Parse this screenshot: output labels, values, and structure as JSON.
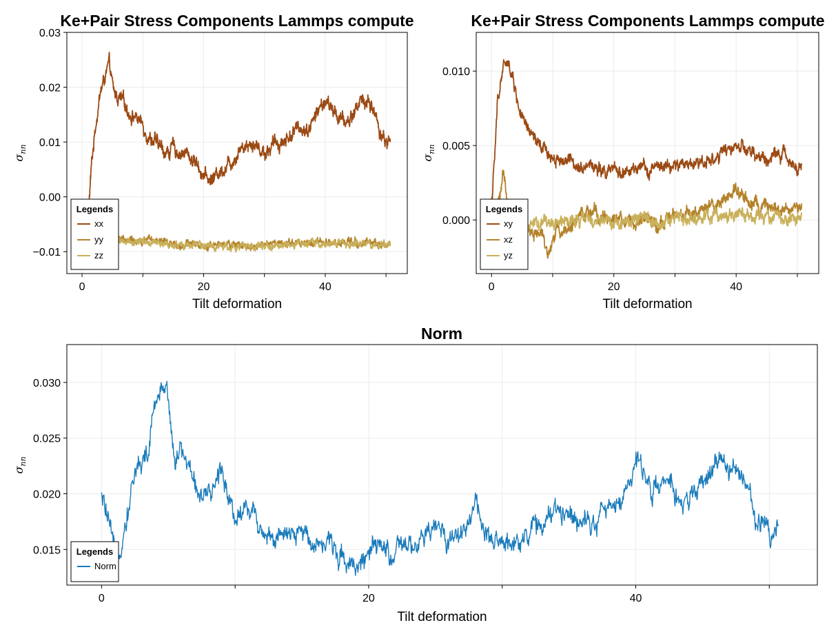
{
  "chart_data": [
    {
      "type": "line",
      "title": "Ke+Pair Stress Components Lammps compute",
      "xlabel": "Tilt deformation",
      "ylabel_main": "σ",
      "ylabel_sub": "nn",
      "xlim": [
        -2.5,
        53.5
      ],
      "ylim": [
        -0.014,
        0.03
      ],
      "xticks": [
        0,
        20,
        40
      ],
      "xtick_labels": [
        "0",
        "20",
        "40"
      ],
      "yticks": [
        -0.01,
        0.0,
        0.01,
        0.02,
        0.03
      ],
      "ytick_labels": [
        "−0.01",
        "0.00",
        "0.01",
        "0.02",
        "0.03"
      ],
      "grid": true,
      "legend": {
        "title": "Legends",
        "placement": "bottom-left"
      },
      "series": [
        {
          "name": "xx",
          "color": "#9b4a14",
          "noise": 0.0012,
          "points": [
            [
              1.0,
              -0.004
            ],
            [
              1.5,
              0.005
            ],
            [
              2.2,
              0.013
            ],
            [
              3.0,
              0.019
            ],
            [
              3.8,
              0.022
            ],
            [
              4.5,
              0.024
            ],
            [
              5.2,
              0.019
            ],
            [
              6.0,
              0.018
            ],
            [
              7.0,
              0.017
            ],
            [
              8.0,
              0.015
            ],
            [
              9.0,
              0.0145
            ],
            [
              10.0,
              0.013
            ],
            [
              11.0,
              0.011
            ],
            [
              12.0,
              0.01
            ],
            [
              13.0,
              0.009
            ],
            [
              14.0,
              0.008
            ],
            [
              15.0,
              0.009
            ],
            [
              16.0,
              0.008
            ],
            [
              17.0,
              0.008
            ],
            [
              18.0,
              0.007
            ],
            [
              19.0,
              0.006
            ],
            [
              20.0,
              0.004
            ],
            [
              21.0,
              0.003
            ],
            [
              22.0,
              0.004
            ],
            [
              23.0,
              0.005
            ],
            [
              24.0,
              0.006
            ],
            [
              25.0,
              0.007
            ],
            [
              26.0,
              0.009
            ],
            [
              27.0,
              0.0095
            ],
            [
              28.0,
              0.01
            ],
            [
              29.0,
              0.009
            ],
            [
              30.0,
              0.008
            ],
            [
              31.0,
              0.009
            ],
            [
              32.0,
              0.01
            ],
            [
              33.0,
              0.01
            ],
            [
              34.0,
              0.011
            ],
            [
              35.0,
              0.012
            ],
            [
              36.0,
              0.013
            ],
            [
              37.0,
              0.012
            ],
            [
              38.0,
              0.014
            ],
            [
              39.0,
              0.016
            ],
            [
              40.0,
              0.0175
            ],
            [
              41.0,
              0.016
            ],
            [
              42.0,
              0.015
            ],
            [
              43.0,
              0.0135
            ],
            [
              44.0,
              0.014
            ],
            [
              45.0,
              0.016
            ],
            [
              46.0,
              0.018
            ],
            [
              47.0,
              0.017
            ],
            [
              48.0,
              0.016
            ],
            [
              49.0,
              0.012
            ],
            [
              50.0,
              0.01
            ],
            [
              50.7,
              0.01
            ]
          ]
        },
        {
          "name": "yy",
          "color": "#b3822a",
          "noise": 0.0006,
          "points": [
            [
              5.0,
              -0.0075
            ],
            [
              10.0,
              -0.008
            ],
            [
              15.0,
              -0.0085
            ],
            [
              20.0,
              -0.0088
            ],
            [
              25.0,
              -0.0088
            ],
            [
              30.0,
              -0.0088
            ],
            [
              35.0,
              -0.0086
            ],
            [
              40.0,
              -0.0084
            ],
            [
              45.0,
              -0.0083
            ],
            [
              50.7,
              -0.0086
            ]
          ]
        },
        {
          "name": "zz",
          "color": "#c9b05b",
          "noise": 0.0006,
          "points": [
            [
              5.0,
              -0.0078
            ],
            [
              10.0,
              -0.0082
            ],
            [
              15.0,
              -0.0088
            ],
            [
              20.0,
              -0.009
            ],
            [
              25.0,
              -0.009
            ],
            [
              30.0,
              -0.009
            ],
            [
              35.0,
              -0.0088
            ],
            [
              40.0,
              -0.0085
            ],
            [
              45.0,
              -0.0085
            ],
            [
              50.7,
              -0.0088
            ]
          ]
        }
      ]
    },
    {
      "type": "line",
      "title": "Ke+Pair Stress Components Lammps compute",
      "xlabel": "Tilt deformation",
      "ylabel_main": "σ",
      "ylabel_sub": "nn",
      "xlim": [
        -2.5,
        53.5
      ],
      "ylim": [
        -0.0036,
        0.0126
      ],
      "xticks": [
        0,
        20,
        40
      ],
      "xtick_labels": [
        "0",
        "20",
        "40"
      ],
      "yticks": [
        0.0,
        0.005,
        0.01
      ],
      "ytick_labels": [
        "0.000",
        "0.005",
        "0.010"
      ],
      "grid": true,
      "legend": {
        "title": "Legends",
        "placement": "bottom-left"
      },
      "series": [
        {
          "name": "xy",
          "color": "#9b4a14",
          "noise": 0.0004,
          "points": [
            [
              0.0,
              0.001
            ],
            [
              0.5,
              0.004
            ],
            [
              1.0,
              0.008
            ],
            [
              2.0,
              0.0105
            ],
            [
              3.0,
              0.0102
            ],
            [
              3.5,
              0.0095
            ],
            [
              4.5,
              0.0075
            ],
            [
              5.5,
              0.0062
            ],
            [
              7.0,
              0.0055
            ],
            [
              8.0,
              0.0048
            ],
            [
              9.0,
              0.0046
            ],
            [
              10.0,
              0.0042
            ],
            [
              12.0,
              0.004
            ],
            [
              14.0,
              0.0038
            ],
            [
              15.0,
              0.0036
            ],
            [
              16.0,
              0.0038
            ],
            [
              18.0,
              0.0032
            ],
            [
              20.0,
              0.0033
            ],
            [
              22.0,
              0.0032
            ],
            [
              25.0,
              0.0034
            ],
            [
              27.0,
              0.0035
            ],
            [
              30.0,
              0.0036
            ],
            [
              32.0,
              0.0038
            ],
            [
              35.0,
              0.004
            ],
            [
              37.0,
              0.0042
            ],
            [
              39.0,
              0.0048
            ],
            [
              40.0,
              0.005
            ],
            [
              42.0,
              0.0045
            ],
            [
              44.0,
              0.0042
            ],
            [
              45.0,
              0.004
            ],
            [
              47.0,
              0.0045
            ],
            [
              49.0,
              0.004
            ],
            [
              50.7,
              0.0035
            ]
          ]
        },
        {
          "name": "xz",
          "color": "#b3822a",
          "noise": 0.0004,
          "points": [
            [
              0.0,
              0.0
            ],
            [
              1.0,
              0.0008
            ],
            [
              2.0,
              0.003
            ],
            [
              2.5,
              0.0015
            ],
            [
              3.5,
              0.0
            ],
            [
              5.0,
              -0.0005
            ],
            [
              7.0,
              -0.0008
            ],
            [
              8.5,
              -0.0012
            ],
            [
              9.5,
              -0.0022
            ],
            [
              10.5,
              -0.0008
            ],
            [
              12.0,
              -0.0006
            ],
            [
              14.0,
              -0.0002
            ],
            [
              15.5,
              0.0006
            ],
            [
              17.0,
              0.0004
            ],
            [
              19.0,
              0.0002
            ],
            [
              21.0,
              0.0
            ],
            [
              23.0,
              -0.0002
            ],
            [
              25.0,
              0.0
            ],
            [
              27.0,
              -0.0002
            ],
            [
              30.0,
              0.0002
            ],
            [
              33.0,
              0.0005
            ],
            [
              36.0,
              0.0008
            ],
            [
              38.0,
              0.0012
            ],
            [
              40.0,
              0.0022
            ],
            [
              41.0,
              0.0018
            ],
            [
              42.0,
              0.0012
            ],
            [
              44.0,
              0.0008
            ],
            [
              46.0,
              0.0006
            ],
            [
              48.0,
              0.0006
            ],
            [
              50.7,
              0.001
            ]
          ]
        },
        {
          "name": "yz",
          "color": "#c9b05b",
          "noise": 0.0004,
          "points": [
            [
              0.0,
              0.0
            ],
            [
              2.0,
              0.0003
            ],
            [
              4.0,
              -0.0003
            ],
            [
              8.0,
              -0.0002
            ],
            [
              12.0,
              -0.0002
            ],
            [
              16.0,
              0.0
            ],
            [
              20.0,
              -0.0001
            ],
            [
              24.0,
              0.0
            ],
            [
              28.0,
              0.0
            ],
            [
              32.0,
              0.0001
            ],
            [
              36.0,
              0.0002
            ],
            [
              40.0,
              0.0003
            ],
            [
              44.0,
              0.0002
            ],
            [
              48.0,
              0.0002
            ],
            [
              50.7,
              0.0002
            ]
          ]
        }
      ]
    },
    {
      "type": "line",
      "title": "Norm",
      "xlabel": "Tilt deformation",
      "ylabel_main": "σ",
      "ylabel_sub": "nn",
      "xlim": [
        -2.6,
        53.6
      ],
      "ylim": [
        0.0118,
        0.0334
      ],
      "xticks": [
        0,
        20,
        40
      ],
      "xtick_labels": [
        "0",
        "20",
        "40"
      ],
      "yticks": [
        0.015,
        0.02,
        0.025,
        0.03
      ],
      "ytick_labels": [
        "0.015",
        "0.020",
        "0.025",
        "0.030"
      ],
      "grid": true,
      "legend": {
        "title": "Legends",
        "placement": "bottom-left"
      },
      "series": [
        {
          "name": "Norm",
          "color": "#1a7bbb",
          "noise": 0.001,
          "points": [
            [
              0.0,
              0.0195
            ],
            [
              0.3,
              0.0185
            ],
            [
              0.6,
              0.0165
            ],
            [
              1.0,
              0.014
            ],
            [
              1.5,
              0.016
            ],
            [
              2.0,
              0.019
            ],
            [
              2.5,
              0.022
            ],
            [
              3.0,
              0.023
            ],
            [
              3.5,
              0.0235
            ],
            [
              4.0,
              0.028
            ],
            [
              4.5,
              0.029
            ],
            [
              4.9,
              0.0305
            ],
            [
              5.2,
              0.026
            ],
            [
              5.6,
              0.023
            ],
            [
              6.0,
              0.024
            ],
            [
              7.0,
              0.021
            ],
            [
              8.0,
              0.019
            ],
            [
              9.0,
              0.0225
            ],
            [
              10.0,
              0.018
            ],
            [
              11.0,
              0.019
            ],
            [
              12.0,
              0.017
            ],
            [
              13.0,
              0.016
            ],
            [
              14.0,
              0.0158
            ],
            [
              15.0,
              0.0165
            ],
            [
              16.0,
              0.016
            ],
            [
              17.0,
              0.0155
            ],
            [
              18.0,
              0.0145
            ],
            [
              19.0,
              0.0138
            ],
            [
              20.0,
              0.0145
            ],
            [
              21.0,
              0.015
            ],
            [
              22.0,
              0.0145
            ],
            [
              23.0,
              0.015
            ],
            [
              24.0,
              0.0155
            ],
            [
              25.0,
              0.017
            ],
            [
              26.0,
              0.016
            ],
            [
              27.0,
              0.0165
            ],
            [
              28.0,
              0.0195
            ],
            [
              29.0,
              0.015
            ],
            [
              30.0,
              0.0155
            ],
            [
              31.0,
              0.016
            ],
            [
              32.0,
              0.0165
            ],
            [
              33.0,
              0.0175
            ],
            [
              34.0,
              0.018
            ],
            [
              35.0,
              0.0185
            ],
            [
              36.0,
              0.018
            ],
            [
              37.0,
              0.0178
            ],
            [
              38.0,
              0.0185
            ],
            [
              39.0,
              0.0195
            ],
            [
              40.0,
              0.023
            ],
            [
              41.0,
              0.021
            ],
            [
              42.0,
              0.0205
            ],
            [
              43.0,
              0.02
            ],
            [
              44.0,
              0.019
            ],
            [
              45.0,
              0.021
            ],
            [
              46.0,
              0.0225
            ],
            [
              47.0,
              0.023
            ],
            [
              48.0,
              0.021
            ],
            [
              49.0,
              0.018
            ],
            [
              50.0,
              0.017
            ],
            [
              50.7,
              0.0172
            ]
          ]
        }
      ]
    }
  ]
}
